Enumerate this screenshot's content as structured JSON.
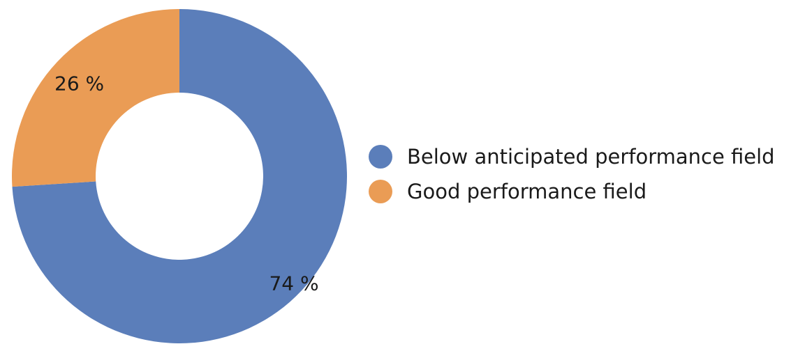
{
  "chart_data": {
    "type": "pie",
    "style": "donut",
    "categories": [
      "Below anticipated performance field",
      "Good performance field"
    ],
    "values": [
      74,
      26
    ],
    "value_unit": "%",
    "data_labels": [
      "74 %",
      "26 %"
    ],
    "colors": [
      "#5B7EBA",
      "#EA9C55"
    ],
    "legend_position": "right",
    "title": ""
  }
}
